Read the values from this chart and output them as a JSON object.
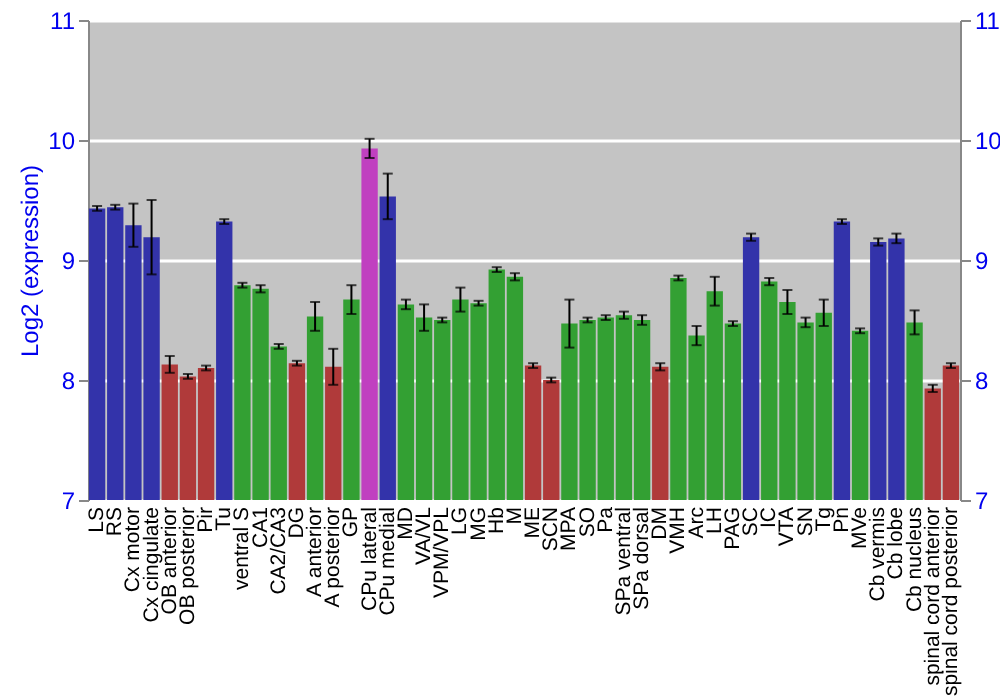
{
  "chart_data": {
    "type": "bar",
    "ylabel": "Log2 (expression)",
    "categories": [
      "LS",
      "RS",
      "Cx motor",
      "Cx cingulate",
      "OB anterior",
      "OB posterior",
      "Pir",
      "Tu",
      "ventral S",
      "CA1",
      "CA2/CA3",
      "DG",
      "A anterior",
      "A posterior",
      "GP",
      "CPu lateral",
      "CPu medial",
      "MD",
      "VA/VL",
      "VPM/VPL",
      "LG",
      "MG",
      "Hb",
      "M",
      "ME",
      "SCN",
      "MPA",
      "SO",
      "Pa",
      "SPa ventral",
      "SPa dorsal",
      "DM",
      "VMH",
      "Arc",
      "LH",
      "PAG",
      "SC",
      "IC",
      "VTA",
      "SN",
      "Tg",
      "Pn",
      "MVe",
      "Cb vermis",
      "Cb lobe",
      "Cb nucleus",
      "spinal cord anterior",
      "spinal cord posterior"
    ],
    "values": [
      9.43,
      9.44,
      9.29,
      9.19,
      8.13,
      8.03,
      8.1,
      9.32,
      8.79,
      8.76,
      8.28,
      8.14,
      8.53,
      8.11,
      8.67,
      9.93,
      9.53,
      8.63,
      8.52,
      8.5,
      8.67,
      8.64,
      8.92,
      8.86,
      8.12,
      8.0,
      8.47,
      8.5,
      8.52,
      8.54,
      8.5,
      8.11,
      8.85,
      8.37,
      8.74,
      8.47,
      9.19,
      8.82,
      8.65,
      8.48,
      8.56,
      9.32,
      8.41,
      9.15,
      9.18,
      8.48,
      7.93,
      8.12
    ],
    "errors": [
      0.02,
      0.02,
      0.18,
      0.31,
      0.07,
      0.02,
      0.02,
      0.02,
      0.02,
      0.03,
      0.02,
      0.02,
      0.12,
      0.15,
      0.12,
      0.08,
      0.19,
      0.04,
      0.11,
      0.02,
      0.1,
      0.02,
      0.02,
      0.03,
      0.02,
      0.02,
      0.2,
      0.02,
      0.02,
      0.03,
      0.04,
      0.03,
      0.02,
      0.08,
      0.12,
      0.02,
      0.03,
      0.03,
      0.1,
      0.04,
      0.11,
      0.02,
      0.02,
      0.03,
      0.04,
      0.1,
      0.03,
      0.02
    ],
    "colors": [
      "#3333aa",
      "#3333aa",
      "#3333aa",
      "#3333aa",
      "#b03a3a",
      "#b03a3a",
      "#b03a3a",
      "#3333aa",
      "#33a033",
      "#33a033",
      "#33a033",
      "#b03a3a",
      "#33a033",
      "#b03a3a",
      "#33a033",
      "#c040c0",
      "#3333aa",
      "#33a033",
      "#33a033",
      "#33a033",
      "#33a033",
      "#33a033",
      "#33a033",
      "#33a033",
      "#b03a3a",
      "#b03a3a",
      "#33a033",
      "#33a033",
      "#33a033",
      "#33a033",
      "#33a033",
      "#b03a3a",
      "#33a033",
      "#33a033",
      "#33a033",
      "#33a033",
      "#3333aa",
      "#33a033",
      "#33a033",
      "#33a033",
      "#33a033",
      "#3333aa",
      "#33a033",
      "#3333aa",
      "#3333aa",
      "#33a033",
      "#b03a3a",
      "#b03a3a"
    ],
    "ylim": [
      7,
      11
    ],
    "yticks": [
      7,
      8,
      9,
      10,
      11
    ],
    "y2lim": [
      7,
      11
    ],
    "y2ticks": [
      7,
      8,
      9,
      10,
      11
    ],
    "grid": "y"
  }
}
